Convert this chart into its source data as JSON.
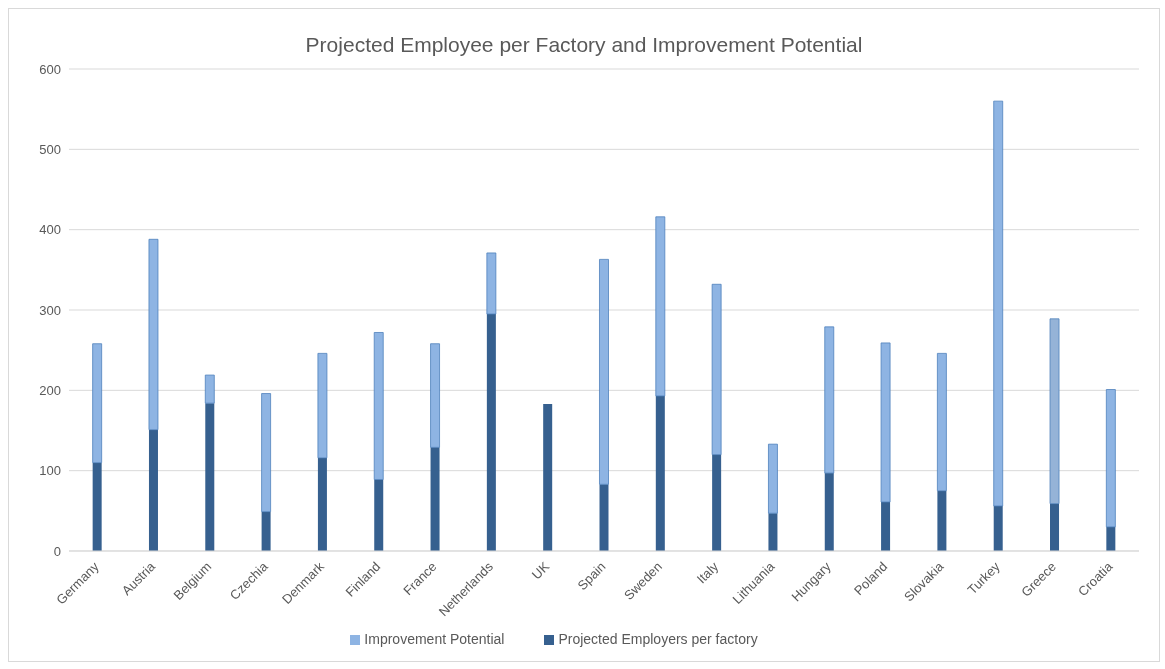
{
  "chart_data": {
    "type": "bar",
    "title": "Projected Employee per Factory and Improvement Potential",
    "categories": [
      "Germany",
      "Austria",
      "Belgium",
      "Czechia",
      "Denmark",
      "Finland",
      "France",
      "Netherlands",
      "UK",
      "Spain",
      "Sweden",
      "Italy",
      "Lithuania",
      "Hungary",
      "Poland",
      "Slovakia",
      "Turkey",
      "Greece",
      "Croatia"
    ],
    "series": [
      {
        "name": "Projected Employers per factory",
        "color": "#36608f",
        "values": [
          110,
          151,
          184,
          49,
          116,
          89,
          129,
          295,
          183,
          83,
          193,
          120,
          47,
          97,
          61,
          75,
          56,
          59,
          30
        ]
      },
      {
        "name": "Improvement Potential",
        "color": "#8eb4e3",
        "colors": [
          "#8eb4e3",
          "#8eb4e3",
          "#8eb4e3",
          "#8eb4e3",
          "#8eb4e3",
          "#8eb4e3",
          "#8eb4e3",
          "#8eb4e3",
          "#8eb4e3",
          "#8eb4e3",
          "#8eb4e3",
          "#8eb4e3",
          "#8eb4e3",
          "#8eb4e3",
          "#8eb4e3",
          "#8eb4e3",
          "#8eb4e3",
          "#95b3d7",
          "#8eb4e3"
        ],
        "values": [
          148,
          237,
          35,
          147,
          130,
          183,
          129,
          76,
          0,
          280,
          223,
          212,
          86,
          182,
          198,
          171,
          504,
          230,
          171
        ]
      }
    ],
    "stacked": true,
    "ylim": [
      0,
      600
    ],
    "yticks": [
      0,
      100,
      200,
      300,
      400,
      500,
      600
    ],
    "grid": "y",
    "legend": "bottom"
  }
}
